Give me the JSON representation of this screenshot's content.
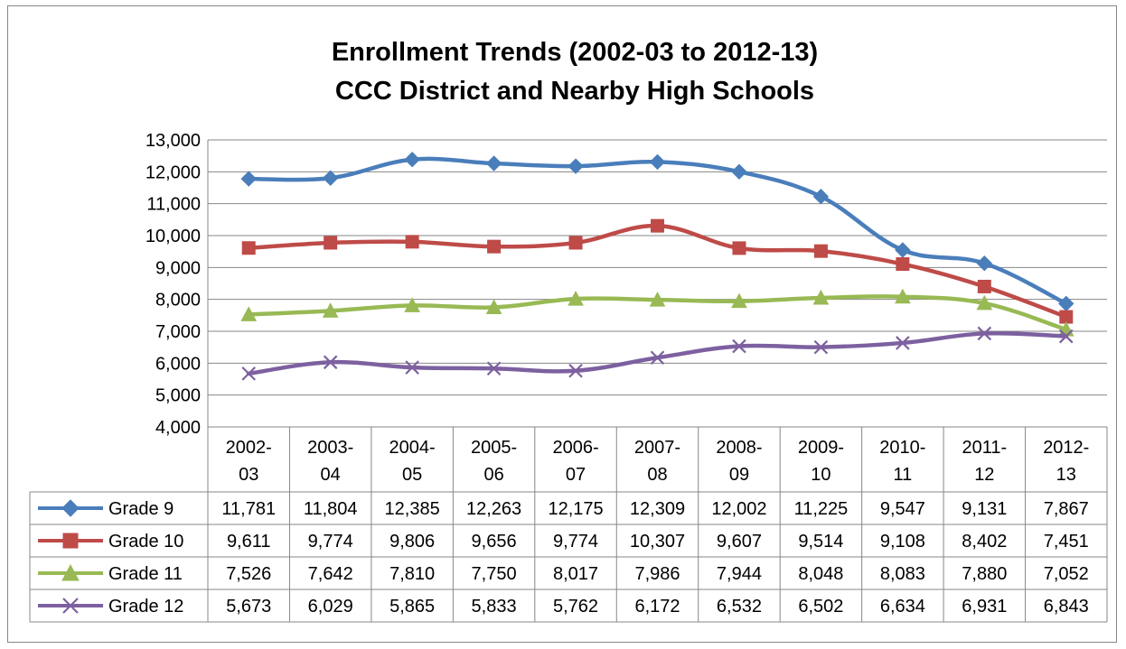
{
  "chart_data": {
    "type": "line",
    "title": "Enrollment Trends (2002-03 to 2012-13)",
    "subtitle": "CCC District and Nearby High Schools",
    "categories": [
      "2002-03",
      "2003-04",
      "2004-05",
      "2005-06",
      "2006-07",
      "2007-08",
      "2008-09",
      "2009-10",
      "2010-11",
      "2011-12",
      "2012-13"
    ],
    "category_lines": [
      [
        "2002-",
        "03"
      ],
      [
        "2003-",
        "04"
      ],
      [
        "2004-",
        "05"
      ],
      [
        "2005-",
        "06"
      ],
      [
        "2006-",
        "07"
      ],
      [
        "2007-",
        "08"
      ],
      [
        "2008-",
        "09"
      ],
      [
        "2009-",
        "10"
      ],
      [
        "2010-",
        "11"
      ],
      [
        "2011-",
        "12"
      ],
      [
        "2012-",
        "13"
      ]
    ],
    "ylim": [
      4000,
      13000
    ],
    "yticks": [
      4000,
      5000,
      6000,
      7000,
      8000,
      9000,
      10000,
      11000,
      12000,
      13000
    ],
    "ytick_labels": [
      "4,000",
      "5,000",
      "6,000",
      "7,000",
      "8,000",
      "9,000",
      "10,000",
      "11,000",
      "12,000",
      "13,000"
    ],
    "grid": true,
    "legend": "data-table",
    "series": [
      {
        "name": "Grade 9",
        "color": "#4a7ebb",
        "marker": "diamond",
        "values": [
          11781,
          11804,
          12385,
          12263,
          12175,
          12309,
          12002,
          11225,
          9547,
          9131,
          7867
        ],
        "labels": [
          "11,781",
          "11,804",
          "12,385",
          "12,263",
          "12,175",
          "12,309",
          "12,002",
          "11,225",
          "9,547",
          "9,131",
          "7,867"
        ]
      },
      {
        "name": "Grade 10",
        "color": "#be4b48",
        "marker": "square",
        "values": [
          9611,
          9774,
          9806,
          9656,
          9774,
          10307,
          9607,
          9514,
          9108,
          8402,
          7451
        ],
        "labels": [
          "9,611",
          "9,774",
          "9,806",
          "9,656",
          "9,774",
          "10,307",
          "9,607",
          "9,514",
          "9,108",
          "8,402",
          "7,451"
        ]
      },
      {
        "name": "Grade 11",
        "color": "#98b954",
        "marker": "triangle",
        "values": [
          7526,
          7642,
          7810,
          7750,
          8017,
          7986,
          7944,
          8048,
          8083,
          7880,
          7052
        ],
        "labels": [
          "7,526",
          "7,642",
          "7,810",
          "7,750",
          "8,017",
          "7,986",
          "7,944",
          "8,048",
          "8,083",
          "7,880",
          "7,052"
        ]
      },
      {
        "name": "Grade 12",
        "color": "#7d60a0",
        "marker": "x",
        "values": [
          5673,
          6029,
          5865,
          5833,
          5762,
          6172,
          6532,
          6502,
          6634,
          6931,
          6843
        ],
        "labels": [
          "5,673",
          "6,029",
          "5,865",
          "5,833",
          "5,762",
          "6,172",
          "6,532",
          "6,502",
          "6,634",
          "6,931",
          "6,843"
        ]
      }
    ]
  }
}
